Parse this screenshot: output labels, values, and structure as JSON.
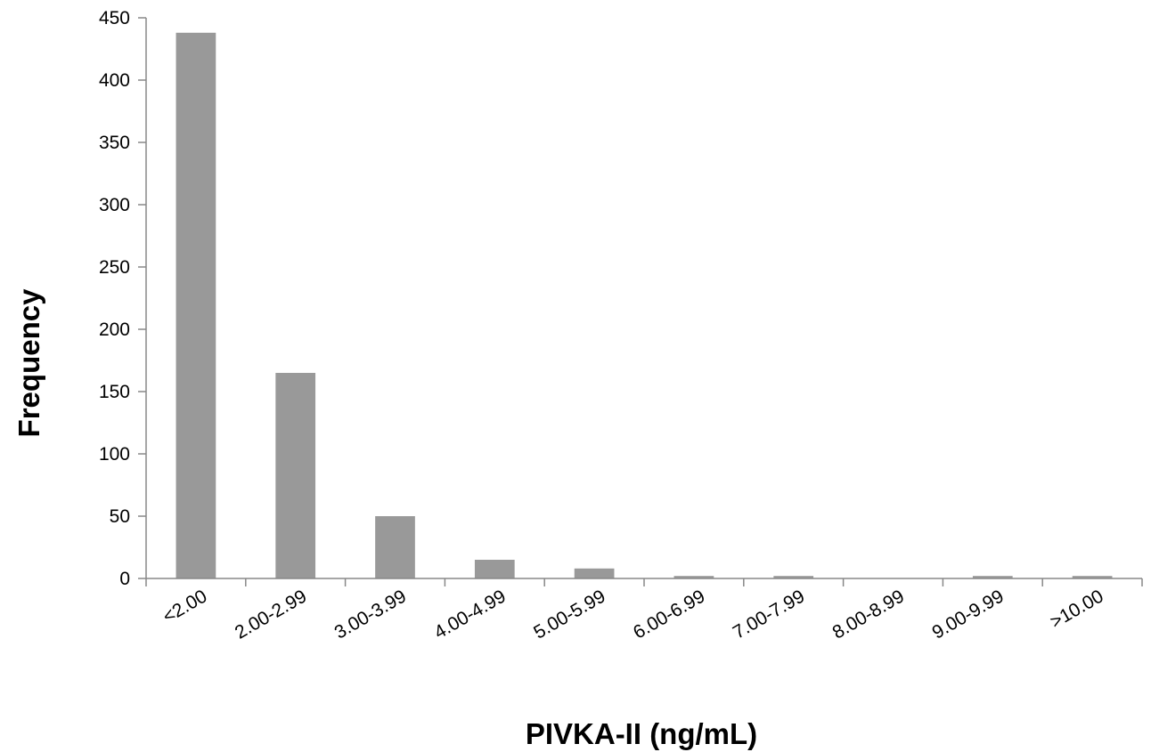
{
  "chart_data": {
    "type": "bar",
    "title": "",
    "xlabel": "PIVKA-II (ng/mL)",
    "ylabel": "Frequency",
    "categories": [
      "<2.00",
      "2.00-2.99",
      "3.00-3.99",
      "4.00-4.99",
      "5.00-5.99",
      "6.00-6.99",
      "7.00-7.99",
      "8.00-8.99",
      "9.00-9.99",
      ">10.00"
    ],
    "values": [
      438,
      165,
      50,
      15,
      8,
      2,
      2,
      0,
      2,
      2
    ],
    "ylim": [
      0,
      450
    ],
    "yticks": [
      0,
      50,
      100,
      150,
      200,
      250,
      300,
      350,
      400,
      450
    ],
    "grid": false,
    "legend": "none",
    "colors": {
      "bar": "#999999",
      "axis": "#888888",
      "text": "#000000"
    }
  }
}
